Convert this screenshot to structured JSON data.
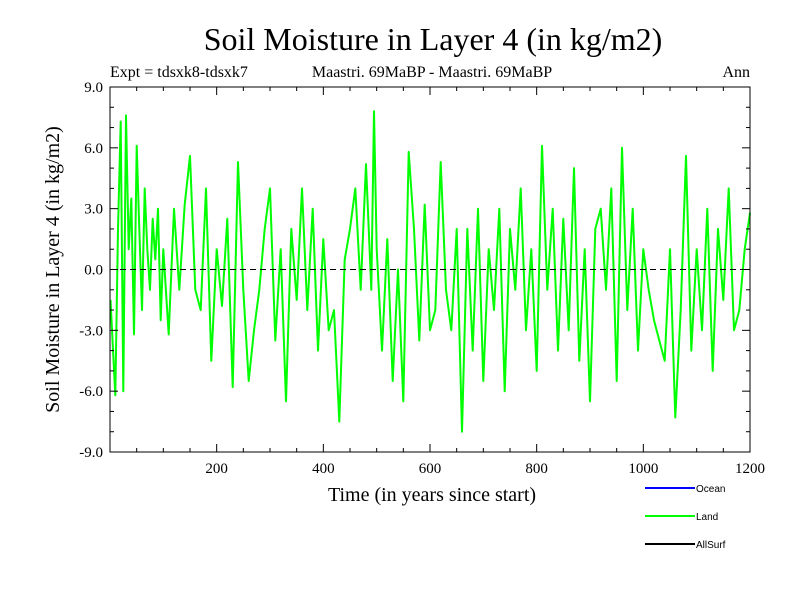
{
  "chart_data": {
    "type": "line",
    "title": "Soil Moisture in Layer 4 (in kg/m2)",
    "subtitle_left": "Expt = tdsxk8-tdsxk7",
    "subtitle_center": "Maastri.  69MaBP - Maastri.  69MaBP",
    "subtitle_right": "Ann",
    "xlabel": "Time (in years since start)",
    "ylabel": "Soil Moisture in Layer 4 (in kg/m2)",
    "xlim": [
      0,
      1200
    ],
    "ylim": [
      -9.0,
      9.0
    ],
    "xticks": [
      200,
      400,
      600,
      800,
      1000,
      1200
    ],
    "xtick_labels": [
      "200",
      "400",
      "600",
      "800",
      "1000",
      "1200"
    ],
    "yticks": [
      -9.0,
      -6.0,
      -3.0,
      0.0,
      3.0,
      6.0,
      9.0
    ],
    "ytick_labels": [
      "-9.0",
      "-6.0",
      "-3.0",
      "0.0",
      "3.0",
      "6.0",
      "9.0"
    ],
    "reference_line": 0.0,
    "legend": [
      {
        "name": "Ocean",
        "color": "#0000ff"
      },
      {
        "name": "Land",
        "color": "#00ff00"
      },
      {
        "name": "AllSurf",
        "color": "#000000"
      }
    ],
    "series": [
      {
        "name": "Land",
        "color": "#00ff00",
        "x": [
          1,
          10,
          15,
          20,
          25,
          30,
          35,
          40,
          45,
          50,
          55,
          60,
          65,
          70,
          75,
          80,
          85,
          90,
          95,
          100,
          110,
          120,
          130,
          140,
          150,
          160,
          170,
          180,
          190,
          200,
          210,
          220,
          230,
          240,
          250,
          260,
          270,
          280,
          290,
          300,
          310,
          320,
          330,
          340,
          350,
          360,
          370,
          380,
          390,
          400,
          410,
          420,
          430,
          440,
          450,
          460,
          470,
          480,
          490,
          495,
          500,
          510,
          520,
          530,
          540,
          550,
          560,
          570,
          580,
          590,
          600,
          610,
          620,
          630,
          640,
          650,
          660,
          670,
          680,
          690,
          700,
          710,
          720,
          730,
          740,
          750,
          760,
          770,
          780,
          790,
          800,
          810,
          820,
          830,
          840,
          850,
          860,
          870,
          880,
          890,
          900,
          910,
          920,
          930,
          940,
          950,
          960,
          970,
          980,
          990,
          1000,
          1010,
          1020,
          1030,
          1040,
          1050,
          1060,
          1070,
          1080,
          1090,
          1100,
          1110,
          1120,
          1130,
          1140,
          1150,
          1160,
          1170,
          1180,
          1190,
          1200
        ],
        "values": [
          -1.5,
          -6.2,
          2.0,
          7.3,
          -6.0,
          7.6,
          1.0,
          3.5,
          -3.2,
          6.1,
          2.0,
          -2.0,
          4.0,
          1.0,
          -1.0,
          2.5,
          0.5,
          3.0,
          -2.5,
          1.0,
          -3.2,
          3.0,
          -1.0,
          3.2,
          5.6,
          -1.0,
          -2.0,
          4.0,
          -4.5,
          1.0,
          -1.8,
          2.5,
          -5.8,
          5.3,
          -1.0,
          -5.5,
          -3.0,
          -1.0,
          2.0,
          4.0,
          -3.5,
          1.0,
          -6.5,
          2.0,
          -1.5,
          4.0,
          -2.0,
          3.0,
          -4.0,
          1.5,
          -3.0,
          -2.0,
          -7.5,
          0.5,
          2.0,
          4.0,
          -1.0,
          5.2,
          -1.0,
          7.8,
          1.0,
          -4.0,
          1.5,
          -5.5,
          0.0,
          -6.5,
          5.8,
          2.0,
          -3.5,
          3.2,
          -3.0,
          -2.0,
          5.3,
          -1.0,
          -3.0,
          2.0,
          -8.0,
          2.0,
          -4.0,
          3.0,
          -5.5,
          1.0,
          -2.0,
          3.0,
          -6.0,
          2.0,
          -1.0,
          4.0,
          -3.0,
          1.0,
          -5.0,
          6.1,
          -1.0,
          3.0,
          -4.0,
          2.5,
          -3.0,
          5.0,
          -4.5,
          1.0,
          -6.5,
          2.0,
          3.0,
          -1.0,
          4.0,
          -5.5,
          6.0,
          -2.0,
          3.0,
          -4.0,
          1.0,
          -1.0,
          -2.5,
          -3.5,
          -4.5,
          1.0,
          -7.3,
          -2.0,
          5.6,
          -4.0,
          1.0,
          -3.0,
          3.0,
          -5.0,
          2.0,
          -1.5,
          4.0,
          -3.0,
          -2.0,
          1.0,
          2.8
        ]
      }
    ]
  }
}
